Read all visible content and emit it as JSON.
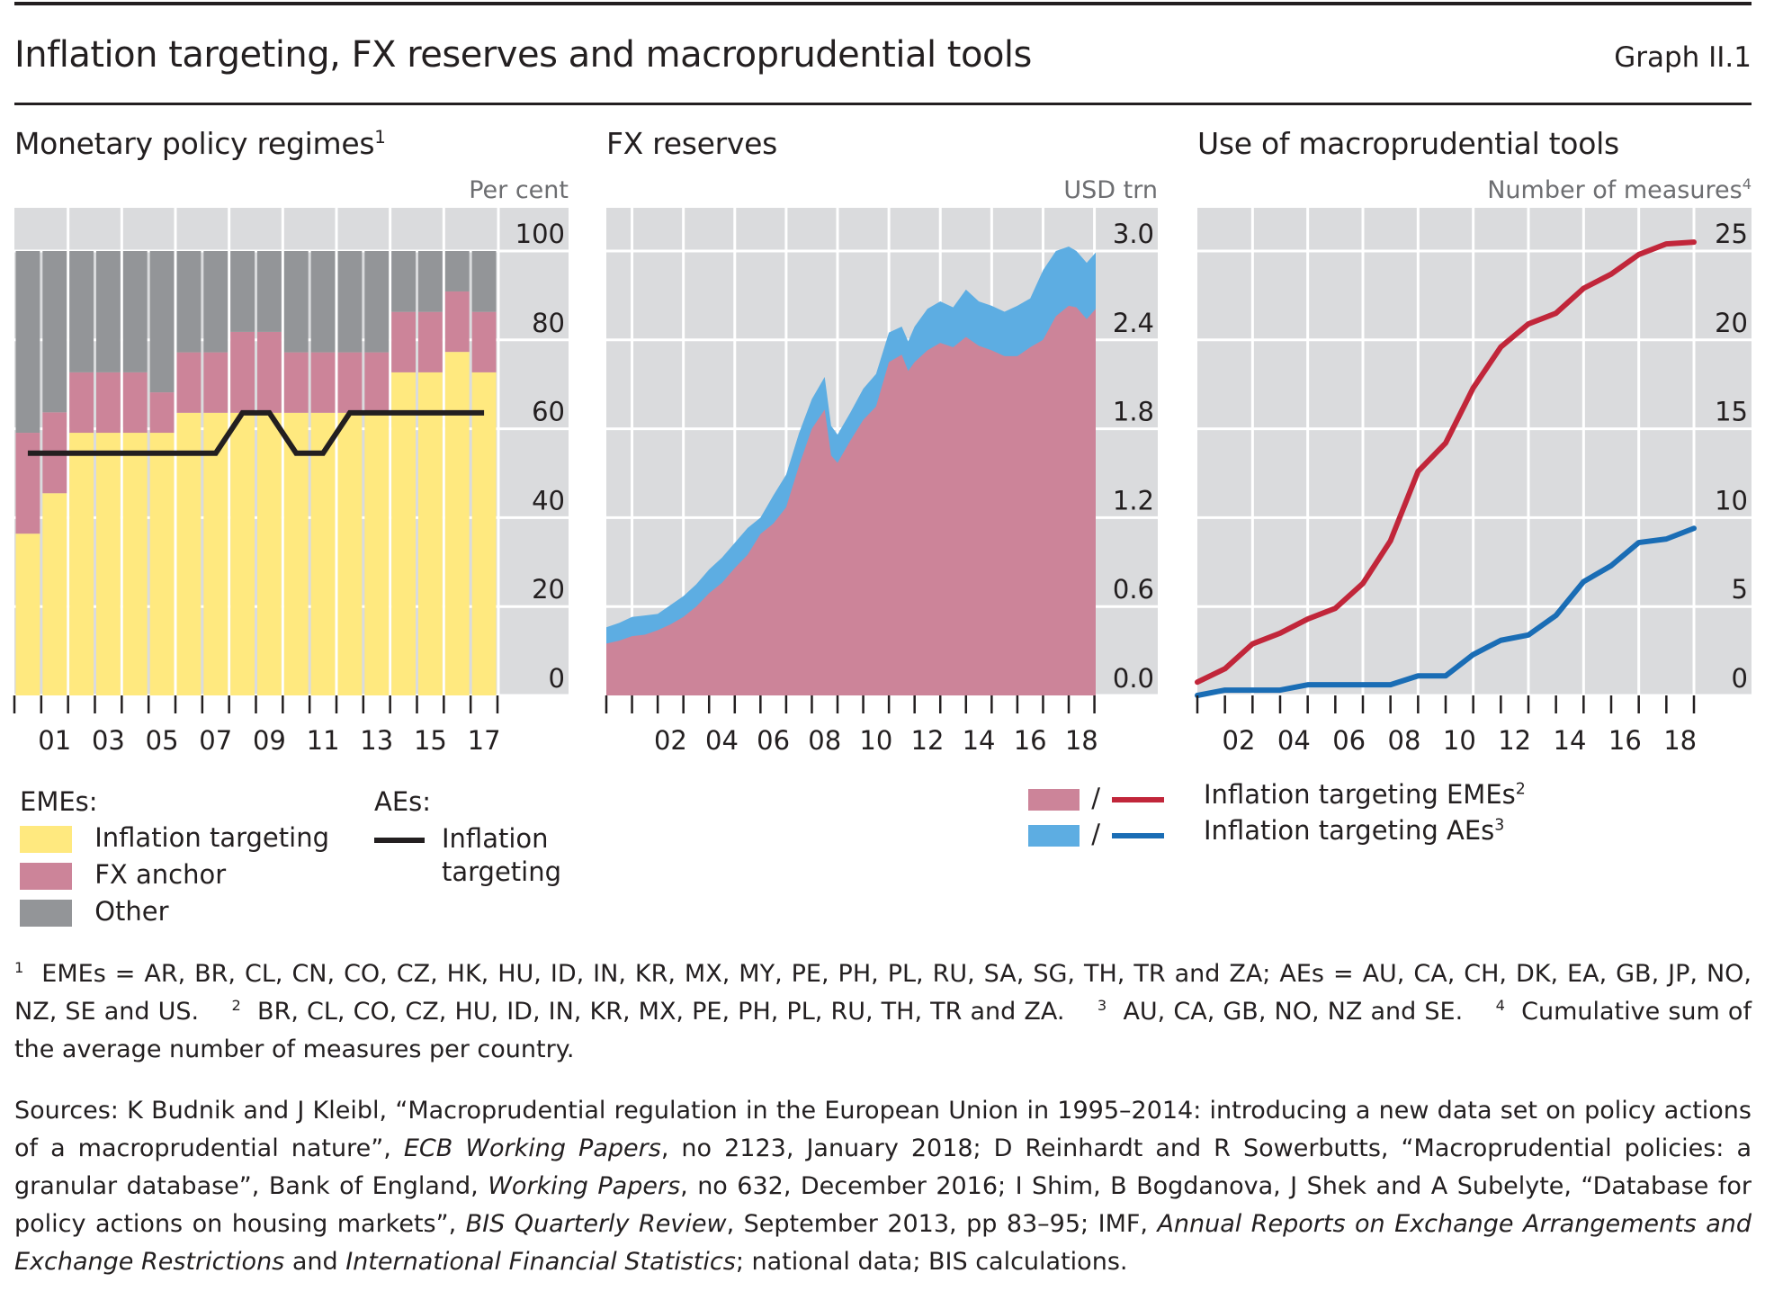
{
  "header": {
    "title": "Inflation targeting, FX reserves and macroprudential tools",
    "graph_id": "Graph II.1"
  },
  "colors": {
    "yellow": "#FFE97F",
    "pink": "#CC8499",
    "grey": "#939598",
    "plot_bg": "#DADBDD",
    "light_blue": "#5DADE2",
    "red_line": "#C1263A",
    "blue_line": "#1A6DB5",
    "black_line": "#231F20"
  },
  "chart_data": [
    {
      "id": "monetary-policy-regimes",
      "type": "bar",
      "stacked": true,
      "title": "Monetary policy regimes",
      "title_footnote": "1",
      "ylabel": "Per cent",
      "ylim": [
        0,
        100
      ],
      "yticks": [
        0,
        20,
        40,
        60,
        80,
        100
      ],
      "years": [
        2000,
        2001,
        2002,
        2003,
        2004,
        2005,
        2006,
        2007,
        2008,
        2009,
        2010,
        2011,
        2012,
        2013,
        2014,
        2015,
        2016,
        2017
      ],
      "xtick_labels": [
        "01",
        "03",
        "05",
        "07",
        "09",
        "11",
        "13",
        "15",
        "17"
      ],
      "series": [
        {
          "name": "EMEs: Inflation targeting",
          "color_key": "yellow",
          "values": [
            36.4,
            45.5,
            59.1,
            59.1,
            59.1,
            59.1,
            63.6,
            63.6,
            63.6,
            63.6,
            63.6,
            63.6,
            63.6,
            63.6,
            72.7,
            72.7,
            77.3,
            72.7
          ]
        },
        {
          "name": "EMEs: FX anchor",
          "color_key": "pink",
          "values": [
            22.7,
            18.2,
            13.6,
            13.6,
            13.6,
            9.1,
            13.6,
            13.6,
            18.2,
            18.2,
            13.6,
            13.6,
            13.6,
            13.6,
            13.6,
            13.6,
            13.6,
            13.6
          ]
        },
        {
          "name": "EMEs: Other",
          "color_key": "grey",
          "values": [
            40.9,
            36.3,
            27.3,
            27.3,
            27.3,
            31.8,
            22.8,
            22.8,
            18.2,
            18.2,
            22.8,
            22.8,
            22.8,
            22.8,
            13.7,
            13.7,
            9.1,
            13.7
          ]
        }
      ],
      "line": {
        "name": "AEs: Inflation targeting",
        "color_key": "black_line",
        "values": [
          54.5,
          54.5,
          54.5,
          54.5,
          54.5,
          54.5,
          54.5,
          54.5,
          63.6,
          63.6,
          54.5,
          54.5,
          63.6,
          63.6,
          63.6,
          63.6,
          63.6,
          63.6
        ]
      },
      "legend": {
        "group1_title": "EMEs:",
        "items1": [
          "Inflation targeting",
          "FX anchor",
          "Other"
        ],
        "group2_title": "AEs:",
        "items2_line1": "Inflation",
        "items2_line2": "targeting"
      }
    },
    {
      "id": "fx-reserves",
      "type": "area",
      "stacked": true,
      "title": "FX reserves",
      "ylabel": "USD trn",
      "ylim": [
        0,
        3.0
      ],
      "yticks": [
        "0.0",
        "0.6",
        "1.2",
        "1.8",
        "2.4",
        "3.0"
      ],
      "xlim": [
        2000,
        2019.05
      ],
      "xtick_labels": [
        "02",
        "04",
        "06",
        "08",
        "10",
        "12",
        "14",
        "16",
        "18"
      ],
      "x": [
        2000,
        2000.5,
        2001,
        2001.5,
        2002,
        2002.5,
        2003,
        2003.5,
        2004,
        2004.5,
        2005,
        2005.5,
        2006,
        2006.5,
        2007,
        2007.5,
        2008,
        2008.5,
        2008.75,
        2009,
        2009.5,
        2010,
        2010.5,
        2011,
        2011.5,
        2011.75,
        2012,
        2012.5,
        2013,
        2013.5,
        2014,
        2014.5,
        2015,
        2015.5,
        2016,
        2016.5,
        2017,
        2017.5,
        2018,
        2018.3,
        2018.7,
        2019.05
      ],
      "series": [
        {
          "name": "Inflation targeting EMEs",
          "color_key": "pink",
          "values": [
            0.35,
            0.37,
            0.4,
            0.41,
            0.44,
            0.48,
            0.53,
            0.6,
            0.69,
            0.76,
            0.86,
            0.95,
            1.09,
            1.16,
            1.27,
            1.55,
            1.8,
            1.93,
            1.62,
            1.57,
            1.72,
            1.86,
            1.95,
            2.25,
            2.3,
            2.19,
            2.25,
            2.33,
            2.38,
            2.35,
            2.42,
            2.36,
            2.33,
            2.29,
            2.29,
            2.35,
            2.4,
            2.56,
            2.63,
            2.62,
            2.54,
            2.61
          ]
        },
        {
          "name": "Inflation targeting AEs",
          "color_key": "light_blue",
          "values": [
            0.11,
            0.12,
            0.13,
            0.13,
            0.11,
            0.13,
            0.14,
            0.15,
            0.16,
            0.17,
            0.17,
            0.18,
            0.11,
            0.19,
            0.22,
            0.22,
            0.2,
            0.22,
            0.2,
            0.19,
            0.19,
            0.21,
            0.22,
            0.2,
            0.19,
            0.2,
            0.24,
            0.28,
            0.28,
            0.27,
            0.32,
            0.3,
            0.3,
            0.3,
            0.34,
            0.33,
            0.47,
            0.44,
            0.4,
            0.38,
            0.38,
            0.38
          ]
        }
      ]
    },
    {
      "id": "macroprudential-tools",
      "type": "line",
      "title": "Use of macroprudential tools",
      "ylabel": "Number of measures",
      "ylabel_footnote": "4",
      "ylim": [
        0,
        25
      ],
      "yticks": [
        0,
        5,
        10,
        15,
        20,
        25
      ],
      "x": [
        2000,
        2001,
        2002,
        2003,
        2004,
        2005,
        2006,
        2007,
        2008,
        2009,
        2010,
        2011,
        2012,
        2013,
        2014,
        2015,
        2016,
        2017,
        2018
      ],
      "xtick_labels": [
        "02",
        "04",
        "06",
        "08",
        "10",
        "12",
        "14",
        "16",
        "18"
      ],
      "series": [
        {
          "name": "Inflation targeting EMEs",
          "footnote": "2",
          "color_key": "red_line",
          "values": [
            0.75,
            1.5,
            2.9,
            3.5,
            4.3,
            4.9,
            6.3,
            8.7,
            12.6,
            14.2,
            17.3,
            19.6,
            20.9,
            21.5,
            22.9,
            23.7,
            24.8,
            25.4,
            25.5
          ]
        },
        {
          "name": "Inflation targeting AEs",
          "footnote": "3",
          "color_key": "blue_line",
          "values": [
            0.0,
            0.3,
            0.3,
            0.3,
            0.6,
            0.6,
            0.6,
            0.6,
            1.1,
            1.1,
            2.3,
            3.1,
            3.4,
            4.5,
            6.4,
            7.3,
            8.6,
            8.8,
            9.4
          ]
        }
      ],
      "legend": {
        "separator": "/",
        "items": [
          "Inflation targeting EMEs",
          "Inflation targeting AEs"
        ],
        "footnotes": [
          "2",
          "3"
        ]
      }
    }
  ],
  "footnotes": {
    "fn1_mark": "1",
    "fn1_text": "EMEs = AR, BR, CL, CN, CO, CZ, HK, HU, ID, IN, KR, MX, MY, PE, PH, PL, RU, SA, SG, TH, TR and ZA; AEs = AU, CA, CH, DK, EA, GB, JP, NO, NZ, SE and US.",
    "fn2_mark": "2",
    "fn2_text": "BR, CL, CO, CZ, HU, ID, IN, KR, MX, PE, PH, PL, RU, TH, TR and ZA.",
    "fn3_mark": "3",
    "fn3_text": "AU, CA, GB, NO, NZ and SE.",
    "fn4_mark": "4",
    "fn4_text": "Cumulative sum of the average number of measures per country."
  },
  "sources": {
    "s1": "Sources: K Budnik and J Kleibl, “Macroprudential regulation in the European Union in 1995–2014: introducing a new data set on policy actions of a macroprudential nature”, ",
    "s1_italic": "ECB Working Papers",
    "s2": ", no 2123, January 2018; D Reinhardt and R Sowerbutts, “Macroprudential policies: a granular database”, Bank of England, ",
    "s2_italic": "Working Papers",
    "s3": ", no 632, December 2016; I Shim, B Bogdanova, J Shek and A Subelyte, “Database for policy actions on housing markets”, ",
    "s3_italic": "BIS Quarterly Review",
    "s4": ", September 2013, pp 83–95; IMF, ",
    "s4_italic": "Annual Reports on Exchange Arrangements and Exchange Restrictions",
    "s5": " and ",
    "s5_italic": "International Financial Statistics",
    "s6": "; national data; BIS calculations."
  }
}
